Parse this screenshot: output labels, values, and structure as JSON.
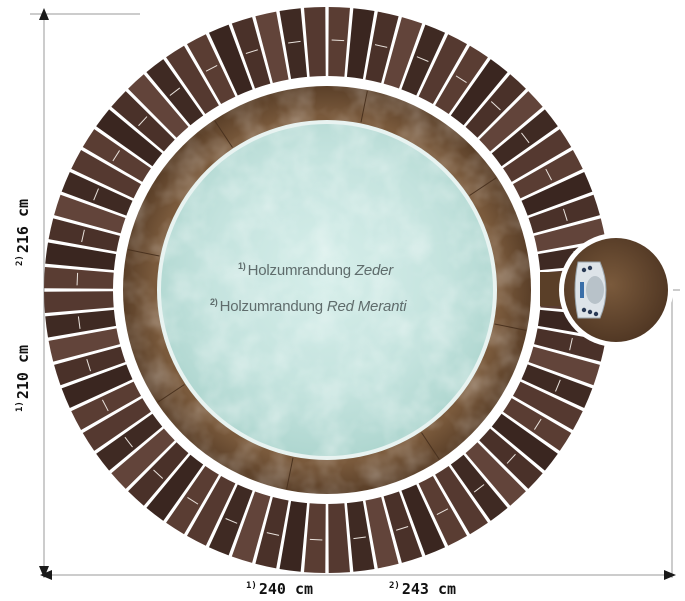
{
  "labels": {
    "cedar": {
      "marker": "1)",
      "prefix": "Holzumrandung",
      "wood": "Zeder"
    },
    "meranti": {
      "marker": "2)",
      "prefix": "Holzumrandung",
      "wood": "Red Meranti"
    }
  },
  "dimensions": {
    "width_cedar": {
      "marker": "1)",
      "value": "240 cm"
    },
    "width_meranti": {
      "marker": "2)",
      "value": "243 cm"
    },
    "height_cedar": {
      "marker": "1)",
      "value": "210 cm"
    },
    "height_meranti": {
      "marker": "2)",
      "value": "216 cm"
    }
  },
  "colors": {
    "wood_light": "#5a3d33",
    "wood_dark": "#3a2620",
    "rim": "#6b4d33",
    "water": "#c9e6e2",
    "dim_line": "#9a9a9a"
  }
}
